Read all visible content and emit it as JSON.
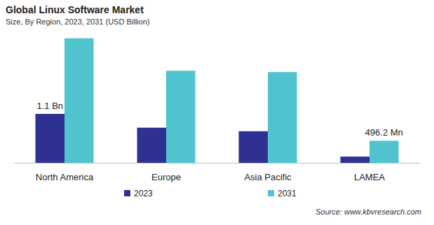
{
  "chart_data": {
    "type": "bar",
    "title": "Global Linux Software Market",
    "subtitle": "Size, By Region, 2023, 2031 (USD Billion)",
    "source": "Source: www.kbvresearch.com",
    "categories": [
      "North America",
      "Europe",
      "Asia Pacific",
      "LAMEA"
    ],
    "series": [
      {
        "name": "2023",
        "color": "#2e3192",
        "values": [
          1.1,
          0.79,
          0.71,
          0.14
        ],
        "value_labels": [
          "1.1 Bn",
          null,
          null,
          null
        ]
      },
      {
        "name": "2031",
        "color": "#4fc4cf",
        "values": [
          2.8,
          2.07,
          2.04,
          0.4962
        ],
        "value_labels": [
          null,
          null,
          null,
          "496.2 Mn"
        ]
      }
    ],
    "ylim": [
      0,
      3.0
    ],
    "tick_labels": "x",
    "legend": "bottom",
    "grid": false
  }
}
